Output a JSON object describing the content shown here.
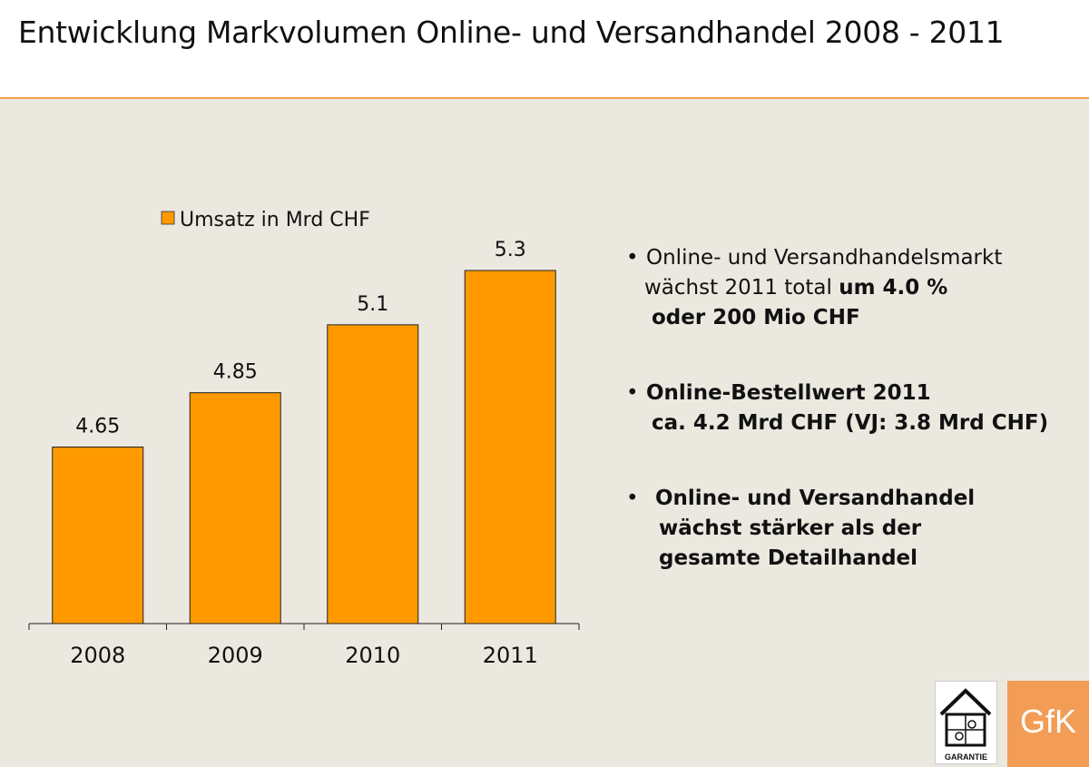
{
  "title": "Entwicklung Markvolumen Online- und Versandhandel 2008 - 2011",
  "chart_data": {
    "type": "bar",
    "categories": [
      "2008",
      "2009",
      "2010",
      "2011"
    ],
    "series": [
      {
        "name": "Umsatz in Mrd CHF",
        "values": [
          4.65,
          4.85,
          5.1,
          5.3
        ],
        "labels": [
          "4.65",
          "4.85",
          "5.1",
          "5.3"
        ]
      }
    ],
    "legend_position": "top",
    "bar_color": "#ff9900",
    "ylim": [
      4.0,
      5.5
    ],
    "grid": false
  },
  "bullets": [
    {
      "marker": "•",
      "lines": [
        "Online- und Versandhandelsmarkt",
        "wächst 2011 total",
        "oder 200 Mio CHF"
      ],
      "emphasis": "um 4.0 %"
    },
    {
      "marker": "•",
      "lines": [
        "Online-Bestellwert 2011",
        "ca. 4.2 Mrd CHF (VJ: 3.8 Mrd CHF)"
      ]
    },
    {
      "marker": "•",
      "lines": [
        "Online- und Versandhandel",
        "wächst stärker als der",
        "gesamte Detailhandel"
      ]
    }
  ],
  "logos": {
    "garantie": "GARANTIE",
    "gfk": "GfK"
  },
  "colors": {
    "panel": "#ebe8e0",
    "bar": "#ff9900",
    "accent_line": "#f0a24a",
    "gfk": "#f29c55"
  }
}
